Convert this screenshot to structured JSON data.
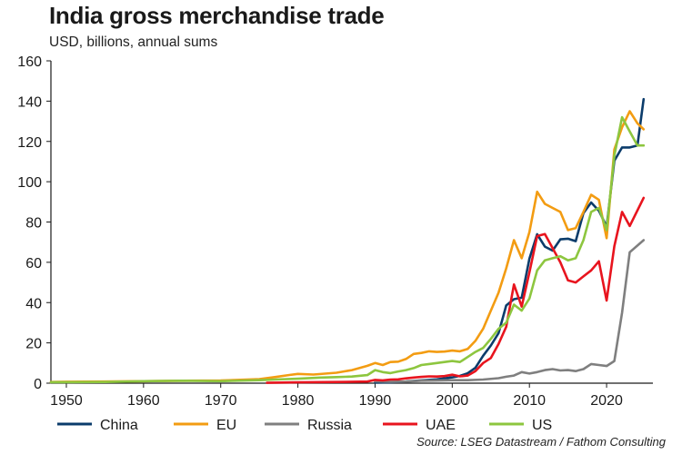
{
  "header": {
    "title": "India gross merchandise trade",
    "subtitle": "USD, billions, annual sums",
    "source": "Source: LSEG Datastream / Fathom Consulting"
  },
  "chart_data": {
    "type": "line",
    "title": "India gross merchandise trade",
    "subtitle": "USD, billions, annual sums",
    "xlabel": "",
    "ylabel": "",
    "xlim": [
      1948,
      2026
    ],
    "ylim": [
      0,
      160
    ],
    "xticks": [
      1950,
      1960,
      1970,
      1980,
      1990,
      2000,
      2010,
      2020
    ],
    "yticks": [
      0,
      20,
      40,
      60,
      80,
      100,
      120,
      140,
      160
    ],
    "grid": false,
    "legend_position": "bottom",
    "series": [
      {
        "name": "China",
        "color": "#0b3c6b",
        "points": [
          [
            1990,
            0.3
          ],
          [
            1992,
            0.4
          ],
          [
            1994,
            0.8
          ],
          [
            1996,
            1.4
          ],
          [
            1998,
            1.9
          ],
          [
            2000,
            2.9
          ],
          [
            2001,
            3.6
          ],
          [
            2002,
            4.9
          ],
          [
            2003,
            7.6
          ],
          [
            2004,
            13.6
          ],
          [
            2005,
            18.7
          ],
          [
            2006,
            24.9
          ],
          [
            2007,
            38.6
          ],
          [
            2008,
            41.7
          ],
          [
            2009,
            42.4
          ],
          [
            2010,
            61.8
          ],
          [
            2011,
            73.9
          ],
          [
            2012,
            67.8
          ],
          [
            2013,
            65.8
          ],
          [
            2014,
            71.4
          ],
          [
            2015,
            71.7
          ],
          [
            2016,
            70.5
          ],
          [
            2017,
            84.4
          ],
          [
            2018,
            89.7
          ],
          [
            2019,
            85.6
          ],
          [
            2020,
            77.7
          ],
          [
            2021,
            110.4
          ],
          [
            2022,
            117.0
          ],
          [
            2023,
            117.0
          ],
          [
            2024,
            118.0
          ],
          [
            2024.8,
            141.0
          ]
        ]
      },
      {
        "name": "EU",
        "color": "#f39c12",
        "points": [
          [
            1948,
            0.6
          ],
          [
            1950,
            0.7
          ],
          [
            1955,
            0.8
          ],
          [
            1960,
            1.0
          ],
          [
            1965,
            1.2
          ],
          [
            1970,
            1.3
          ],
          [
            1975,
            2.0
          ],
          [
            1977,
            3.0
          ],
          [
            1979,
            4.1
          ],
          [
            1980,
            4.6
          ],
          [
            1982,
            4.3
          ],
          [
            1985,
            5.2
          ],
          [
            1987,
            6.5
          ],
          [
            1989,
            8.6
          ],
          [
            1990,
            10.0
          ],
          [
            1991,
            9.0
          ],
          [
            1992,
            10.5
          ],
          [
            1993,
            10.7
          ],
          [
            1994,
            12.0
          ],
          [
            1995,
            14.5
          ],
          [
            1996,
            15.0
          ],
          [
            1997,
            15.8
          ],
          [
            1998,
            15.5
          ],
          [
            1999,
            15.7
          ],
          [
            2000,
            16.2
          ],
          [
            2001,
            15.8
          ],
          [
            2002,
            17.0
          ],
          [
            2003,
            21.0
          ],
          [
            2004,
            27.0
          ],
          [
            2005,
            36.0
          ],
          [
            2006,
            45.0
          ],
          [
            2007,
            57.0
          ],
          [
            2008,
            71.0
          ],
          [
            2009,
            62.0
          ],
          [
            2010,
            75.0
          ],
          [
            2011,
            95.0
          ],
          [
            2012,
            89.0
          ],
          [
            2013,
            87.0
          ],
          [
            2014,
            85.0
          ],
          [
            2015,
            76.0
          ],
          [
            2016,
            77.0
          ],
          [
            2017,
            85.0
          ],
          [
            2018,
            93.5
          ],
          [
            2019,
            91.0
          ],
          [
            2020,
            72.0
          ],
          [
            2021,
            116.0
          ],
          [
            2022,
            127.0
          ],
          [
            2023,
            135.0
          ],
          [
            2024,
            129.0
          ],
          [
            2024.8,
            126.0
          ]
        ]
      },
      {
        "name": "Russia",
        "color": "#7f7f7f",
        "points": [
          [
            1990,
            0.9
          ],
          [
            1992,
            0.7
          ],
          [
            1994,
            0.8
          ],
          [
            1996,
            1.2
          ],
          [
            1998,
            1.3
          ],
          [
            2000,
            1.5
          ],
          [
            2002,
            1.5
          ],
          [
            2004,
            1.8
          ],
          [
            2006,
            2.5
          ],
          [
            2007,
            3.2
          ],
          [
            2008,
            3.8
          ],
          [
            2009,
            5.5
          ],
          [
            2010,
            4.8
          ],
          [
            2011,
            5.5
          ],
          [
            2012,
            6.5
          ],
          [
            2013,
            7.0
          ],
          [
            2014,
            6.3
          ],
          [
            2015,
            6.5
          ],
          [
            2016,
            6.0
          ],
          [
            2017,
            7.0
          ],
          [
            2018,
            9.5
          ],
          [
            2019,
            9.0
          ],
          [
            2020,
            8.5
          ],
          [
            2021,
            11.0
          ],
          [
            2022,
            35.0
          ],
          [
            2023,
            65.0
          ],
          [
            2024.8,
            71.0
          ]
        ]
      },
      {
        "name": "UAE",
        "color": "#e8141e",
        "points": [
          [
            1976,
            0.2
          ],
          [
            1980,
            0.4
          ],
          [
            1985,
            0.6
          ],
          [
            1989,
            0.8
          ],
          [
            1990,
            1.6
          ],
          [
            1991,
            1.4
          ],
          [
            1992,
            1.8
          ],
          [
            1993,
            1.9
          ],
          [
            1994,
            2.4
          ],
          [
            1995,
            2.8
          ],
          [
            1996,
            3.1
          ],
          [
            1997,
            3.4
          ],
          [
            1998,
            3.3
          ],
          [
            1999,
            3.5
          ],
          [
            2000,
            4.2
          ],
          [
            2001,
            3.4
          ],
          [
            2002,
            3.8
          ],
          [
            2003,
            6.0
          ],
          [
            2004,
            10.0
          ],
          [
            2005,
            12.5
          ],
          [
            2006,
            19.5
          ],
          [
            2007,
            28.0
          ],
          [
            2008,
            49.0
          ],
          [
            2009,
            38.0
          ],
          [
            2010,
            55.0
          ],
          [
            2011,
            73.0
          ],
          [
            2012,
            74.0
          ],
          [
            2013,
            67.0
          ],
          [
            2014,
            60.0
          ],
          [
            2015,
            51.0
          ],
          [
            2016,
            50.0
          ],
          [
            2017,
            53.0
          ],
          [
            2018,
            56.0
          ],
          [
            2019,
            60.5
          ],
          [
            2020,
            41.0
          ],
          [
            2021,
            68.0
          ],
          [
            2022,
            85.0
          ],
          [
            2023,
            78.0
          ],
          [
            2024.8,
            92.0
          ]
        ]
      },
      {
        "name": "US",
        "color": "#8dc63f",
        "points": [
          [
            1948,
            0.5
          ],
          [
            1950,
            0.5
          ],
          [
            1955,
            0.6
          ],
          [
            1960,
            1.0
          ],
          [
            1965,
            1.2
          ],
          [
            1970,
            1.0
          ],
          [
            1975,
            1.5
          ],
          [
            1977,
            1.8
          ],
          [
            1980,
            2.2
          ],
          [
            1983,
            2.8
          ],
          [
            1985,
            3.0
          ],
          [
            1987,
            3.3
          ],
          [
            1989,
            4.0
          ],
          [
            1990,
            6.5
          ],
          [
            1991,
            5.5
          ],
          [
            1992,
            5.0
          ],
          [
            1993,
            5.8
          ],
          [
            1994,
            6.5
          ],
          [
            1995,
            7.5
          ],
          [
            1996,
            9.0
          ],
          [
            1997,
            9.5
          ],
          [
            1998,
            10.0
          ],
          [
            1999,
            10.5
          ],
          [
            2000,
            11.0
          ],
          [
            2001,
            10.5
          ],
          [
            2002,
            13.0
          ],
          [
            2003,
            15.5
          ],
          [
            2004,
            17.5
          ],
          [
            2005,
            22.0
          ],
          [
            2006,
            27.0
          ],
          [
            2007,
            30.0
          ],
          [
            2008,
            39.0
          ],
          [
            2009,
            36.0
          ],
          [
            2010,
            42.0
          ],
          [
            2011,
            56.0
          ],
          [
            2012,
            61.0
          ],
          [
            2013,
            62.0
          ],
          [
            2014,
            63.0
          ],
          [
            2015,
            61.0
          ],
          [
            2016,
            62.0
          ],
          [
            2017,
            71.0
          ],
          [
            2018,
            85.0
          ],
          [
            2019,
            87.0
          ],
          [
            2020,
            76.0
          ],
          [
            2021,
            113.0
          ],
          [
            2022,
            132.0
          ],
          [
            2023,
            125.0
          ],
          [
            2024,
            118.0
          ],
          [
            2024.8,
            118.0
          ]
        ]
      }
    ]
  }
}
